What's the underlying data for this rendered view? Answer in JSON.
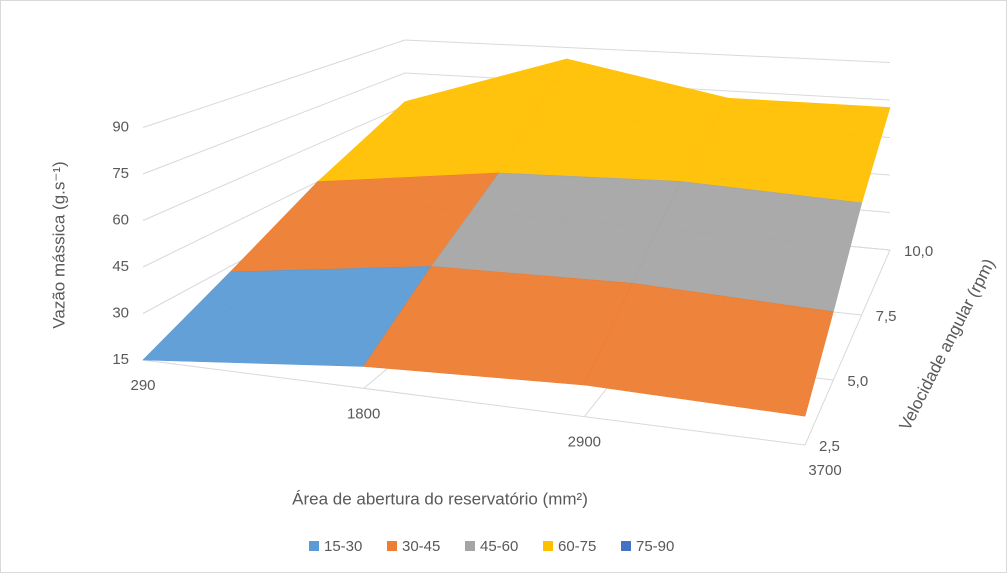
{
  "chart_data": {
    "type": "surface3d",
    "x_label": "Área de abertura do reservatório (mm²)",
    "y_label": "Velocidade angular (rpm)",
    "z_label": "Vazão mássica (g.s⁻¹)",
    "categories": [
      "290",
      "1800",
      "2900",
      "3700"
    ],
    "y": [
      {
        "value": 2.5,
        "label": "2,5"
      },
      {
        "value": 5.0,
        "label": "5,0"
      },
      {
        "value": 7.5,
        "label": "7,5"
      },
      {
        "value": 10.0,
        "label": "10,0"
      }
    ],
    "z": [
      [
        15,
        22,
        25,
        24
      ],
      [
        28,
        38,
        40,
        38
      ],
      [
        45,
        55,
        58,
        56
      ],
      [
        62,
        85,
        72,
        72
      ]
    ],
    "zlim": [
      15,
      90
    ],
    "zticks": [
      15,
      30,
      45,
      60,
      75,
      90
    ],
    "series": [
      {
        "name": "15-30",
        "color": "#5b9bd5"
      },
      {
        "name": "30-45",
        "color": "#ed7d31"
      },
      {
        "name": "45-60",
        "color": "#a5a5a5"
      },
      {
        "name": "60-75",
        "color": "#ffc000"
      },
      {
        "name": "75-90",
        "color": "#4472c4"
      }
    ],
    "grid": true
  }
}
